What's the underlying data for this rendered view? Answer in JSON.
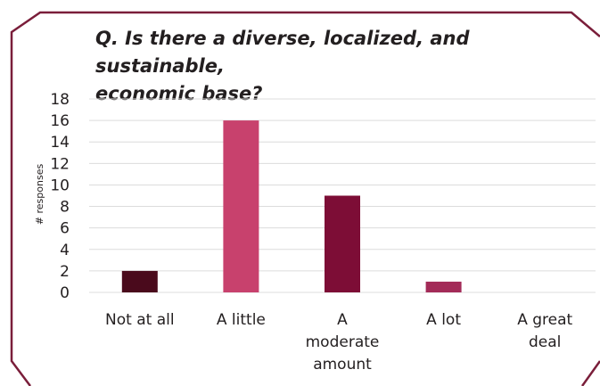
{
  "chart_data": {
    "type": "bar",
    "title": "Q. Is there a diverse, localized, and sustainable, economic base?",
    "title_lines": [
      "Q. Is there a diverse, localized, and sustainable,",
      "economic base?"
    ],
    "xlabel": "",
    "ylabel": "# responses",
    "categories": [
      "Not at all",
      "A little",
      "A moderate amount",
      "A lot",
      "A great deal"
    ],
    "category_label_lines": [
      [
        "Not at all"
      ],
      [
        "A little"
      ],
      [
        "A",
        "moderate",
        "amount"
      ],
      [
        "A lot"
      ],
      [
        "A great",
        "deal"
      ]
    ],
    "values": [
      2,
      16,
      9,
      1,
      0
    ],
    "colors": [
      "#4a0a1c",
      "#c8416d",
      "#7d0d36",
      "#a32b58",
      "#8a1f4a"
    ],
    "ylim": [
      0,
      18
    ],
    "yticks": [
      0,
      2,
      4,
      6,
      8,
      10,
      12,
      14,
      16,
      18
    ],
    "grid": true,
    "legend": "none",
    "frame_color": "#7a1e3a",
    "grid_color": "#dcdcdc"
  }
}
